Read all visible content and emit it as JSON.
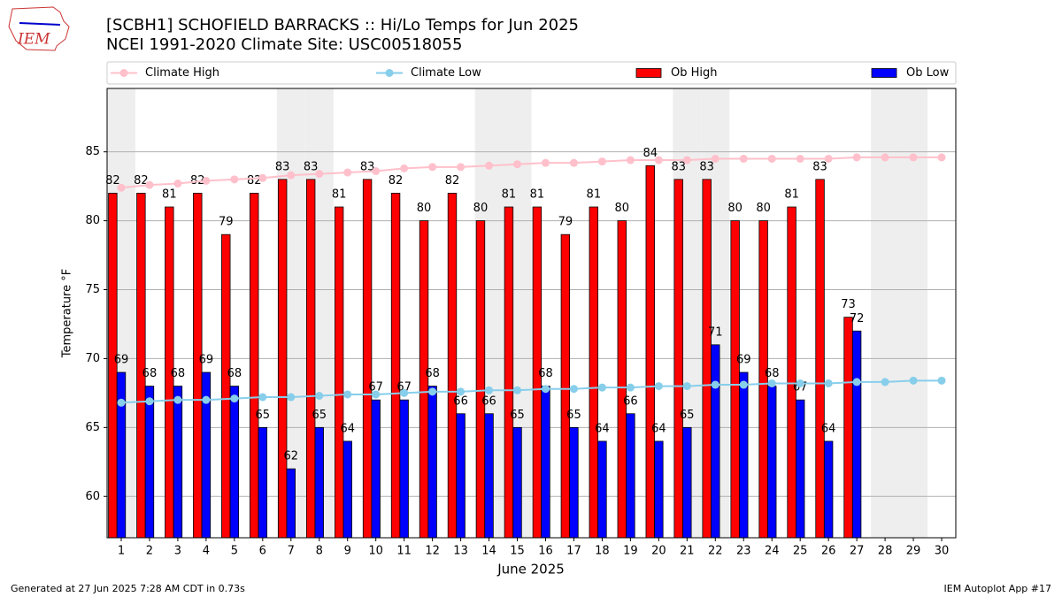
{
  "chart_data": {
    "type": "bar",
    "title": "[SCBH1] SCHOFIELD BARRACKS :: Hi/Lo Temps for Jun 2025",
    "subtitle": "NCEI 1991-2020 Climate Site: USC00518055",
    "logo_text": "IEM",
    "xlabel": "June 2025",
    "ylabel": "Temperature °F",
    "footer_left": "Generated at 27 Jun 2025 7:28 AM CDT in 0.73s",
    "footer_right": "IEM Autoplot App #17",
    "x": [
      1,
      2,
      3,
      4,
      5,
      6,
      7,
      8,
      9,
      10,
      11,
      12,
      13,
      14,
      15,
      16,
      17,
      18,
      19,
      20,
      21,
      22,
      23,
      24,
      25,
      26,
      27,
      28,
      29,
      30
    ],
    "xlim": [
      0.5,
      30.5
    ],
    "xticks": [
      1,
      2,
      3,
      4,
      5,
      6,
      7,
      8,
      9,
      10,
      11,
      12,
      13,
      14,
      15,
      16,
      17,
      18,
      19,
      20,
      21,
      22,
      23,
      24,
      25,
      26,
      27,
      28,
      29,
      30
    ],
    "ylim": [
      57,
      89.6
    ],
    "yticks": [
      60,
      65,
      70,
      75,
      80,
      85
    ],
    "grid": true,
    "shaded_days": [
      1,
      7,
      8,
      14,
      15,
      21,
      22,
      28,
      29
    ],
    "shade_color": "#eeeeee",
    "series": [
      {
        "name": "Climate High",
        "type": "line",
        "color": "#ffc0cb",
        "values": [
          82.4,
          82.6,
          82.7,
          82.9,
          83.0,
          83.1,
          83.3,
          83.4,
          83.5,
          83.6,
          83.8,
          83.9,
          83.9,
          84.0,
          84.1,
          84.2,
          84.2,
          84.3,
          84.4,
          84.4,
          84.4,
          84.5,
          84.5,
          84.5,
          84.5,
          84.5,
          84.6,
          84.6,
          84.6,
          84.6
        ]
      },
      {
        "name": "Climate Low",
        "type": "line",
        "color": "#87ceeb",
        "values": [
          66.8,
          66.9,
          67.0,
          67.0,
          67.1,
          67.2,
          67.2,
          67.3,
          67.4,
          67.4,
          67.5,
          67.6,
          67.6,
          67.7,
          67.7,
          67.8,
          67.8,
          67.9,
          67.9,
          68.0,
          68.0,
          68.1,
          68.1,
          68.2,
          68.2,
          68.2,
          68.3,
          68.3,
          68.4,
          68.4
        ]
      },
      {
        "name": "Ob High",
        "type": "bar",
        "color": "#ff0000",
        "values": [
          82,
          82,
          81,
          82,
          79,
          82,
          83,
          83,
          81,
          83,
          82,
          80,
          82,
          80,
          81,
          81,
          79,
          81,
          80,
          84,
          83,
          83,
          80,
          80,
          81,
          83,
          73,
          null,
          null,
          null
        ]
      },
      {
        "name": "Ob Low",
        "type": "bar",
        "color": "#0000ff",
        "values": [
          69,
          68,
          68,
          69,
          68,
          65,
          62,
          65,
          64,
          67,
          67,
          68,
          66,
          66,
          65,
          68,
          65,
          64,
          66,
          64,
          65,
          71,
          69,
          68,
          67,
          64,
          72,
          null,
          null,
          null
        ]
      }
    ]
  }
}
